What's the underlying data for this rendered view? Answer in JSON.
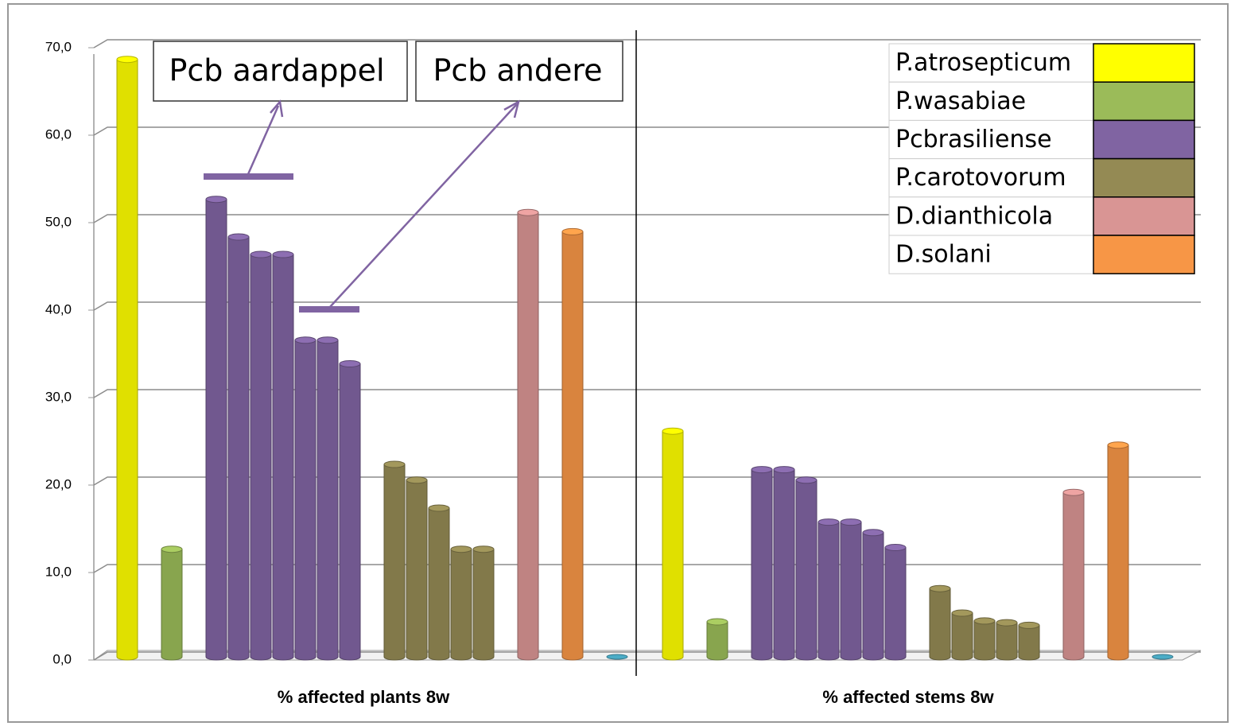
{
  "chart_data": {
    "type": "bar",
    "categories": [
      "% affected plants 8w",
      "% affected stems 8w"
    ],
    "series": [
      {
        "name": "P.atrosepticum",
        "color": "#ffff00",
        "values": [
          [
            68.3
          ],
          [
            25.8
          ]
        ]
      },
      {
        "name": "P.wasabiae",
        "color": "#9bbb59",
        "values": [
          [
            12.3
          ],
          [
            4.0
          ]
        ]
      },
      {
        "name": "Pcbrasiliense",
        "color": "#8064a2",
        "values": [
          [
            52.3,
            48.0,
            46.0,
            46.0,
            36.2,
            36.2,
            33.5
          ],
          [
            21.4,
            21.4,
            20.2,
            15.4,
            15.4,
            14.2,
            12.5
          ]
        ]
      },
      {
        "name": "P.carotovorum",
        "color": "#948a54",
        "values": [
          [
            22.0,
            20.2,
            17.0,
            12.3,
            12.3
          ],
          [
            7.8,
            5.0,
            4.1,
            3.9,
            3.6
          ]
        ]
      },
      {
        "name": "D.dianthicola",
        "color": "#d99594",
        "values": [
          [
            50.8
          ],
          [
            18.8
          ]
        ]
      },
      {
        "name": "D.solani",
        "color": "#f79646",
        "values": [
          [
            48.6
          ],
          [
            24.2
          ]
        ]
      }
    ],
    "unlabeled_bars": {
      "color": "#4bacc6",
      "values": [
        0,
        0
      ]
    },
    "ylim": [
      0,
      70
    ],
    "yticks": [
      {
        "value": 0,
        "label": "0,0"
      },
      {
        "value": 10,
        "label": "10,0"
      },
      {
        "value": 20,
        "label": "20,0"
      },
      {
        "value": 30,
        "label": "30,0"
      },
      {
        "value": 40,
        "label": "40,0"
      },
      {
        "value": 50,
        "label": "50,0"
      },
      {
        "value": 60,
        "label": "60,0"
      },
      {
        "value": 70,
        "label": "70,0"
      }
    ],
    "grid": true,
    "legend": "top-right",
    "annotations": [
      "Pcb aardappel",
      "Pcb andere"
    ]
  }
}
